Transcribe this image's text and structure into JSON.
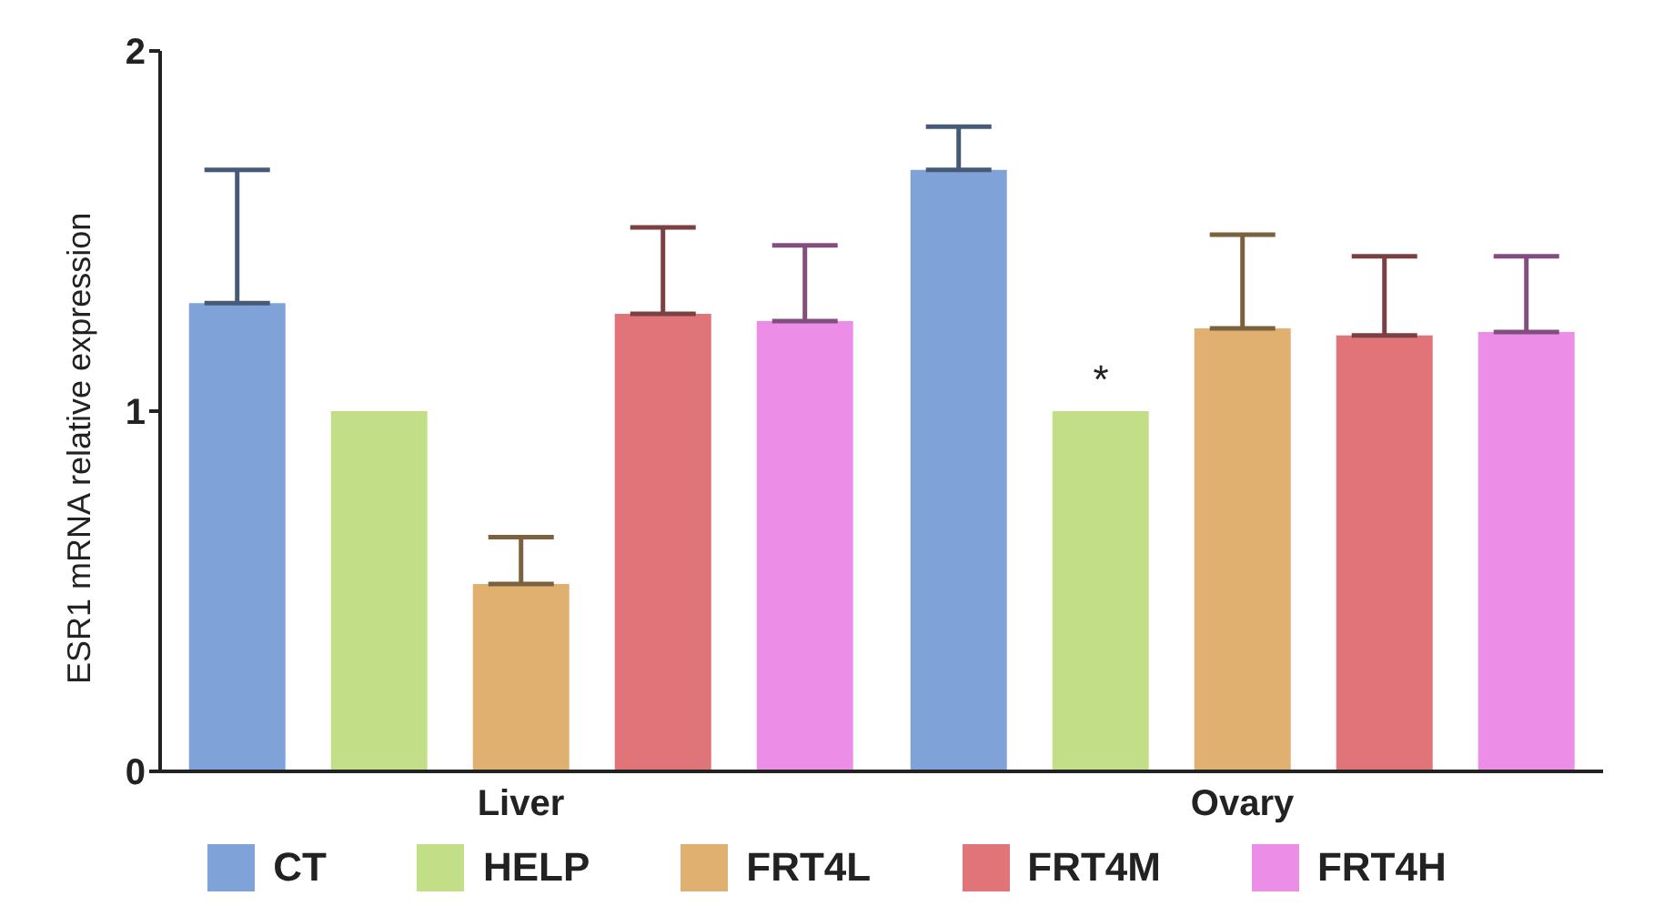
{
  "chart_data": {
    "type": "bar",
    "ylabel": "ESR1 mRNA relative  expression",
    "categories": [
      "Liver",
      "Ovary"
    ],
    "series": [
      {
        "name": "CT",
        "color": "#7fa3d8",
        "values": [
          1.3,
          1.67
        ],
        "errors": [
          [
            1.3,
            1.67
          ],
          [
            1.67,
            1.79
          ]
        ]
      },
      {
        "name": "HELP",
        "color": "#c2df88",
        "values": [
          1.0,
          1.0
        ],
        "errors": [
          null,
          null
        ]
      },
      {
        "name": "FRT4L",
        "color": "#e0b070",
        "values": [
          0.52,
          1.23
        ],
        "errors": [
          [
            0.52,
            0.65
          ],
          [
            1.23,
            1.49
          ]
        ]
      },
      {
        "name": "FRT4M",
        "color": "#e07478",
        "values": [
          1.27,
          1.21
        ],
        "errors": [
          [
            1.27,
            1.51
          ],
          [
            1.21,
            1.43
          ]
        ]
      },
      {
        "name": "FRT4H",
        "color": "#ec8de8",
        "values": [
          1.25,
          1.22
        ],
        "errors": [
          [
            1.25,
            1.46
          ],
          [
            1.22,
            1.43
          ]
        ]
      }
    ],
    "annotations": [
      "*"
    ],
    "ylim": [
      0,
      2
    ],
    "yticks": [
      0,
      1,
      2
    ],
    "grid": false,
    "legend": "bottom"
  }
}
